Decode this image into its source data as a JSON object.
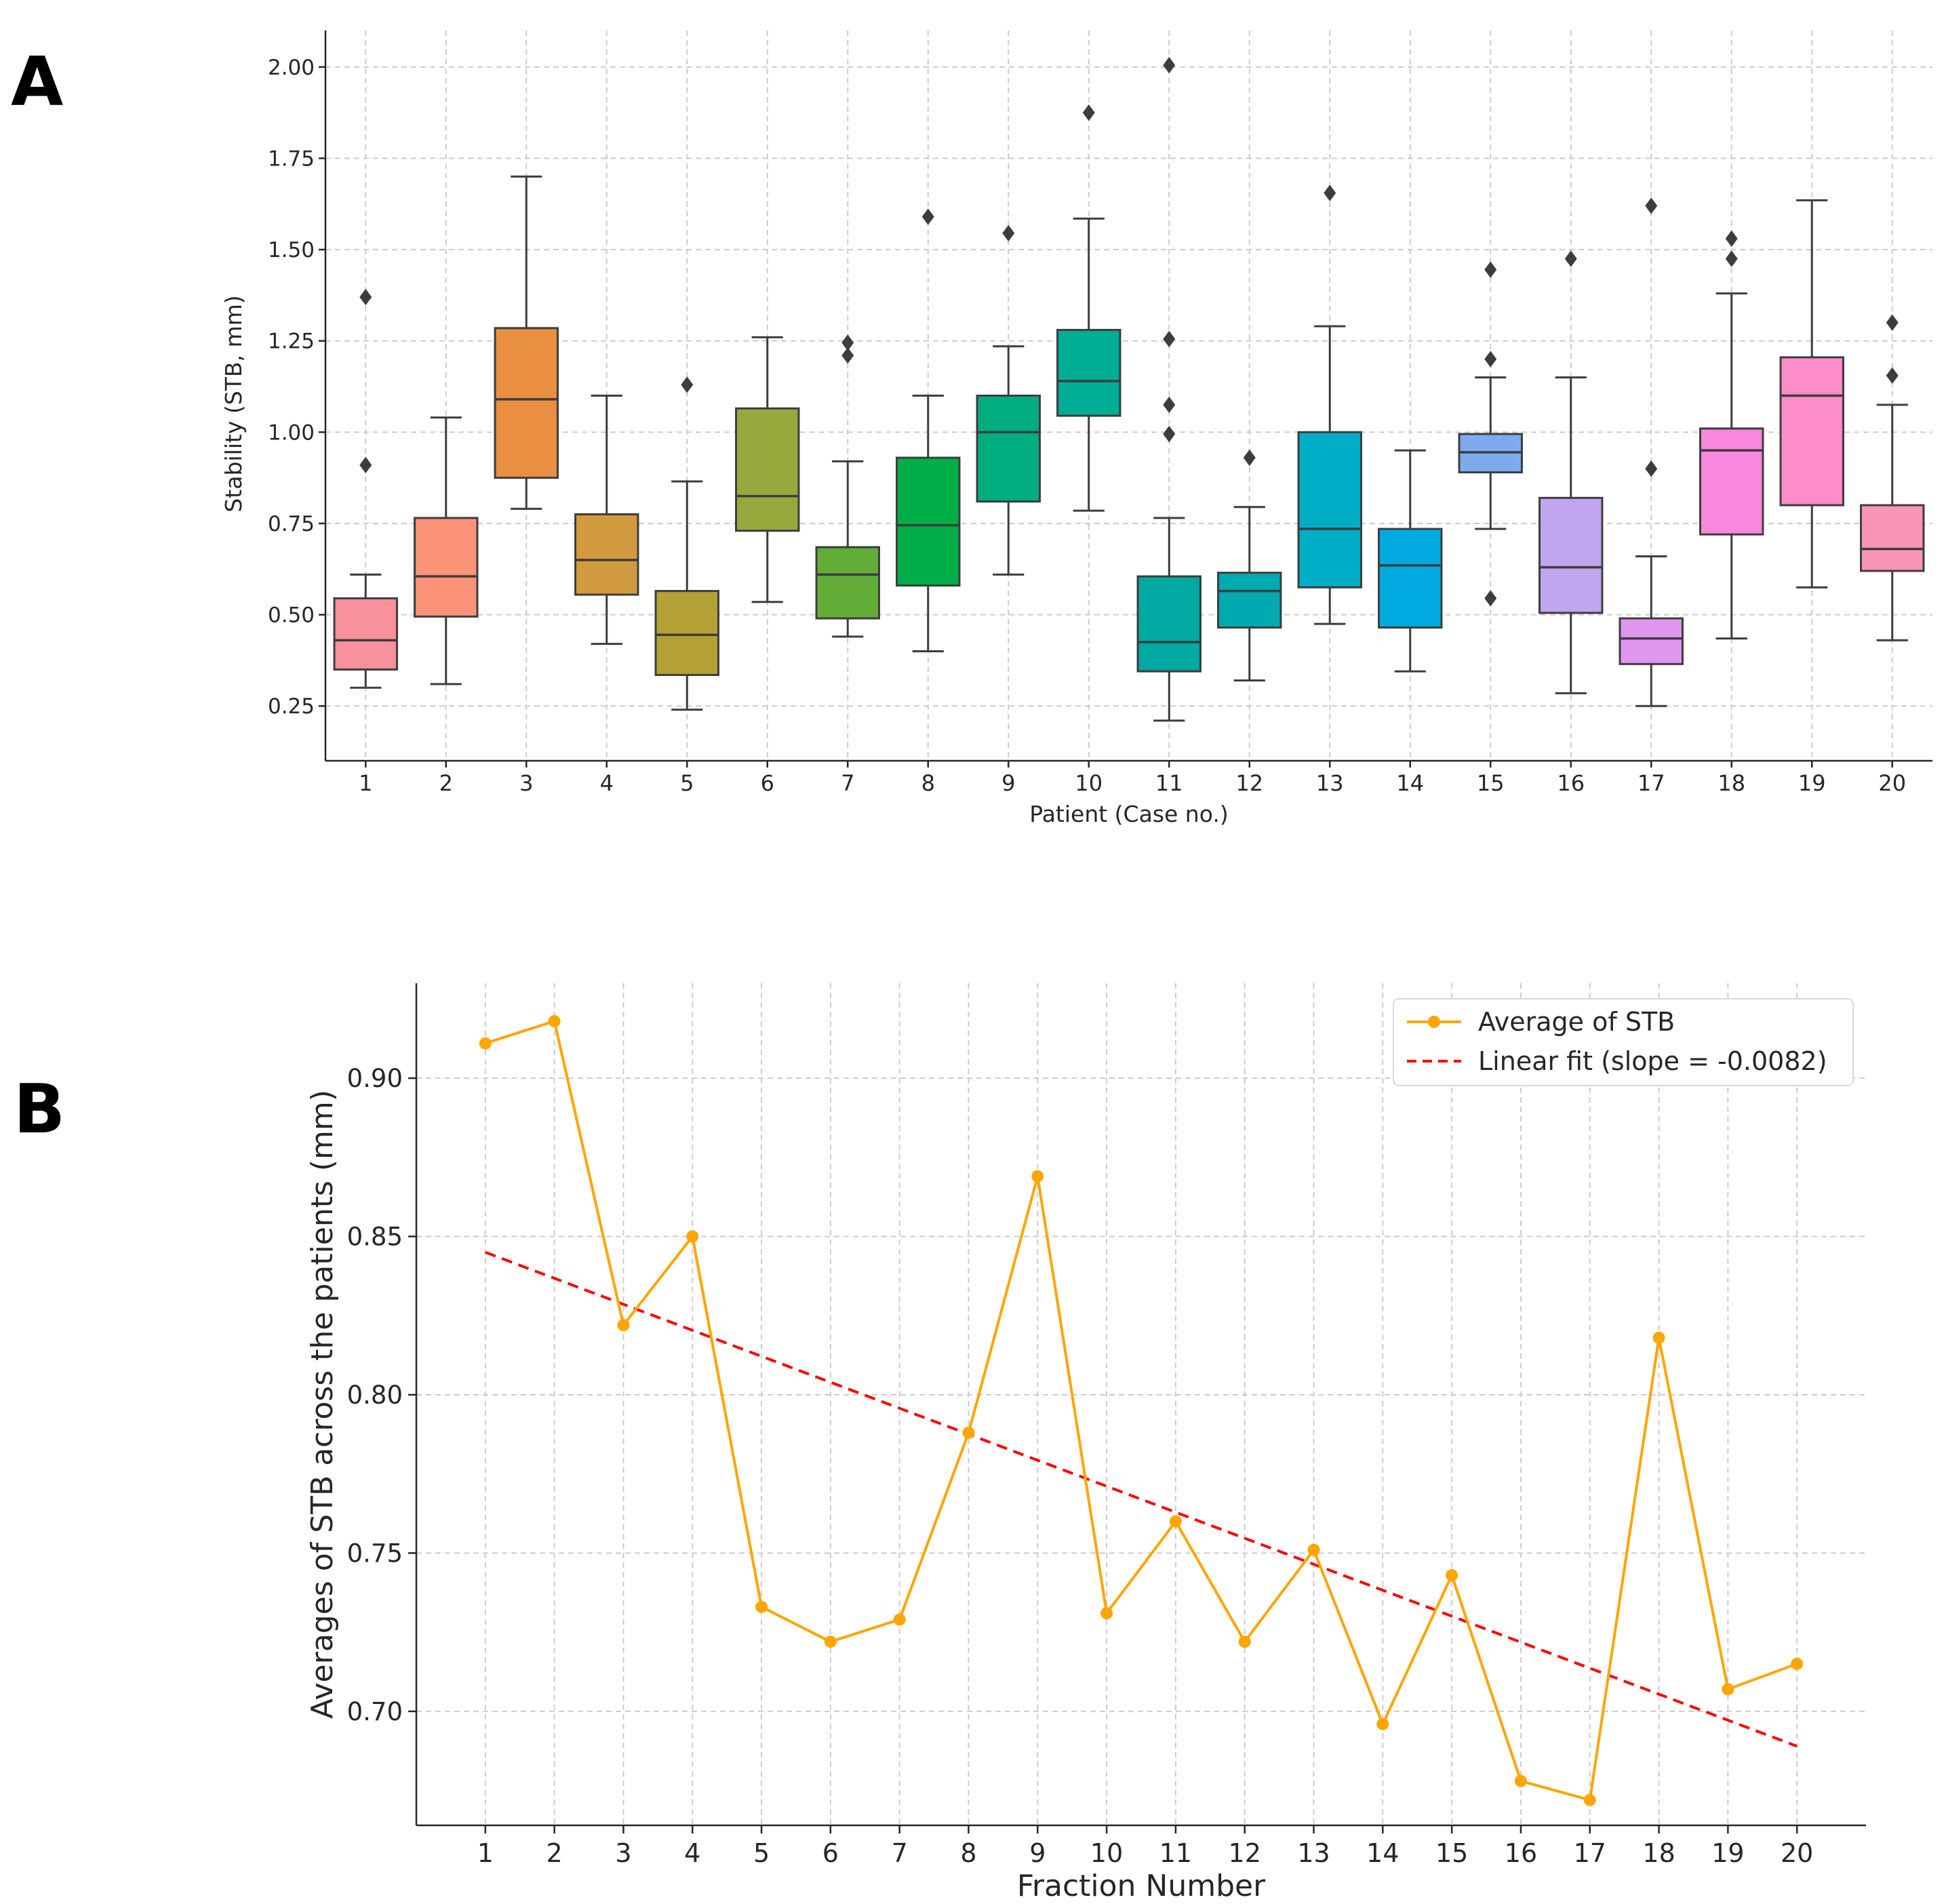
{
  "panels": {
    "a_label": "A",
    "b_label": "B"
  },
  "chart_data": [
    {
      "type": "boxplot",
      "title": "",
      "xlabel": "Patient (Case no.)",
      "ylabel": "Stability (STB, mm)",
      "ylim": [
        0.1,
        2.1
      ],
      "yticks": [
        "0.25",
        "0.50",
        "0.75",
        "1.00",
        "1.25",
        "1.50",
        "1.75",
        "2.00"
      ],
      "grid": true,
      "categories": [
        "1",
        "2",
        "3",
        "4",
        "5",
        "6",
        "7",
        "8",
        "9",
        "10",
        "11",
        "12",
        "13",
        "14",
        "15",
        "16",
        "17",
        "18",
        "19",
        "20"
      ],
      "boxes": [
        {
          "min": 0.3,
          "q1": 0.35,
          "median": 0.43,
          "q3": 0.545,
          "max": 0.61,
          "outliers": [
            0.91,
            1.37
          ],
          "color": "#f7919c"
        },
        {
          "min": 0.31,
          "q1": 0.495,
          "median": 0.605,
          "q3": 0.765,
          "max": 1.04,
          "outliers": [],
          "color": "#fa9377"
        },
        {
          "min": 0.79,
          "q1": 0.875,
          "median": 1.09,
          "q3": 1.285,
          "max": 1.7,
          "outliers": [],
          "color": "#e88f42"
        },
        {
          "min": 0.42,
          "q1": 0.555,
          "median": 0.65,
          "q3": 0.775,
          "max": 1.1,
          "outliers": [],
          "color": "#d29a3e"
        },
        {
          "min": 0.24,
          "q1": 0.335,
          "median": 0.445,
          "q3": 0.565,
          "max": 0.865,
          "outliers": [
            1.13
          ],
          "color": "#b3a135"
        },
        {
          "min": 0.535,
          "q1": 0.73,
          "median": 0.825,
          "q3": 1.065,
          "max": 1.26,
          "outliers": [],
          "color": "#97a83c"
        },
        {
          "min": 0.44,
          "q1": 0.49,
          "median": 0.61,
          "q3": 0.685,
          "max": 0.92,
          "outliers": [
            1.21,
            1.245
          ],
          "color": "#62ad37"
        },
        {
          "min": 0.4,
          "q1": 0.58,
          "median": 0.745,
          "q3": 0.93,
          "max": 1.1,
          "outliers": [
            1.59
          ],
          "color": "#00ae48"
        },
        {
          "min": 0.61,
          "q1": 0.81,
          "median": 1.0,
          "q3": 1.1,
          "max": 1.235,
          "outliers": [
            1.545
          ],
          "color": "#00ad80"
        },
        {
          "min": 0.785,
          "q1": 1.045,
          "median": 1.14,
          "q3": 1.28,
          "max": 1.585,
          "outliers": [
            1.875
          ],
          "color": "#00ad95"
        },
        {
          "min": 0.21,
          "q1": 0.345,
          "median": 0.425,
          "q3": 0.605,
          "max": 0.765,
          "outliers": [
            0.995,
            1.075,
            1.255,
            2.005
          ],
          "color": "#00a9a1"
        },
        {
          "min": 0.32,
          "q1": 0.465,
          "median": 0.565,
          "q3": 0.615,
          "max": 0.795,
          "outliers": [
            0.93
          ],
          "color": "#00aab1"
        },
        {
          "min": 0.475,
          "q1": 0.575,
          "median": 0.735,
          "q3": 1.0,
          "max": 1.29,
          "outliers": [
            1.655
          ],
          "color": "#00adc6"
        },
        {
          "min": 0.345,
          "q1": 0.465,
          "median": 0.635,
          "q3": 0.735,
          "max": 0.95,
          "outliers": [],
          "color": "#00aae1"
        },
        {
          "min": 0.735,
          "q1": 0.89,
          "median": 0.945,
          "q3": 0.995,
          "max": 1.15,
          "outliers": [
            0.545,
            1.2,
            1.445
          ],
          "color": "#7eaaee"
        },
        {
          "min": 0.285,
          "q1": 0.505,
          "median": 0.63,
          "q3": 0.82,
          "max": 1.15,
          "outliers": [
            1.475
          ],
          "color": "#c1a5ef"
        },
        {
          "min": 0.25,
          "q1": 0.365,
          "median": 0.435,
          "q3": 0.49,
          "max": 0.66,
          "outliers": [
            0.9,
            1.62
          ],
          "color": "#de96ef"
        },
        {
          "min": 0.435,
          "q1": 0.72,
          "median": 0.95,
          "q3": 1.01,
          "max": 1.38,
          "outliers": [
            1.475,
            1.53
          ],
          "color": "#fa87de"
        },
        {
          "min": 0.575,
          "q1": 0.8,
          "median": 1.1,
          "q3": 1.205,
          "max": 1.635,
          "outliers": [],
          "color": "#fc8dc8"
        },
        {
          "min": 0.43,
          "q1": 0.62,
          "median": 0.68,
          "q3": 0.8,
          "max": 1.075,
          "outliers": [
            1.155,
            1.3
          ],
          "color": "#f995b5"
        }
      ]
    },
    {
      "type": "line",
      "title": "",
      "xlabel": "Fraction Number",
      "ylabel": "Averages of STB across the patients (mm)",
      "ylim": [
        0.664,
        0.93
      ],
      "yticks": [
        "0.70",
        "0.75",
        "0.80",
        "0.85",
        "0.90"
      ],
      "grid": true,
      "x": [
        1,
        2,
        3,
        4,
        5,
        6,
        7,
        8,
        9,
        10,
        11,
        12,
        13,
        14,
        15,
        16,
        17,
        18,
        19,
        20
      ],
      "series": [
        {
          "name": "Average of STB",
          "color": "#ffa500",
          "marker": "circle",
          "values": [
            0.911,
            0.918,
            0.822,
            0.85,
            0.733,
            0.722,
            0.729,
            0.788,
            0.869,
            0.731,
            0.76,
            0.722,
            0.751,
            0.696,
            0.743,
            0.678,
            0.672,
            0.818,
            0.707,
            0.715
          ]
        },
        {
          "name": "Linear fit (slope = -0.0082)",
          "color": "#ff0000",
          "style": "dashed",
          "start": [
            1,
            0.845
          ],
          "end": [
            20,
            0.689
          ]
        }
      ],
      "legend_position": "top-right"
    }
  ]
}
